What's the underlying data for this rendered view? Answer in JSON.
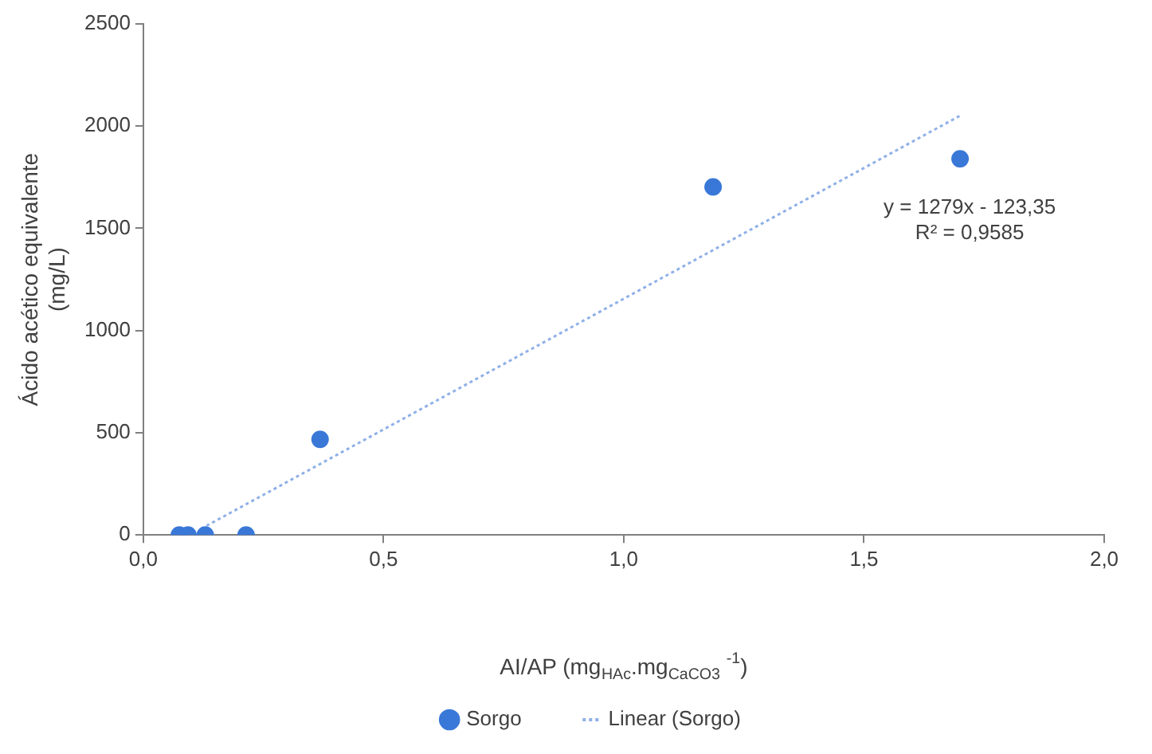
{
  "chart_data": {
    "type": "scatter",
    "xlabel": "AI/AP (mg$_{HAc}$.mg$_{CaCO3}$ $^{-1}$)",
    "ylabel": "Ácido acético equivalente\n(mg/L)",
    "x": [
      0.075,
      0.093,
      0.129,
      0.214,
      0.368,
      1.186,
      1.7
    ],
    "series": [
      {
        "name": "Sorgo",
        "color": "#3a78d8",
        "values": [
          0,
          0,
          0,
          0,
          468,
          1703,
          1840
        ]
      },
      {
        "name": "Linear (Sorgo)",
        "type": "line",
        "line_style": "dotted",
        "marker": "none",
        "color": "#8fb0e8",
        "x": [
          0.12,
          1.7
        ],
        "values": [
          30,
          2051
        ]
      }
    ],
    "marker": "circle",
    "xlim": [
      0,
      2
    ],
    "ylim": [
      0,
      2500
    ],
    "xticks": [
      {
        "value": 0,
        "label": "0,0"
      },
      {
        "value": 0.5,
        "label": "0,5"
      },
      {
        "value": 1,
        "label": "1,0"
      },
      {
        "value": 1.5,
        "label": "1,5"
      },
      {
        "value": 2,
        "label": "2,0"
      }
    ],
    "yticks": [
      0,
      500,
      1000,
      1500,
      2000,
      2500
    ],
    "grid": false,
    "legend": "bottom",
    "annotations": [
      "y = 1279x - 123,35",
      "R² = 0,9585"
    ]
  }
}
